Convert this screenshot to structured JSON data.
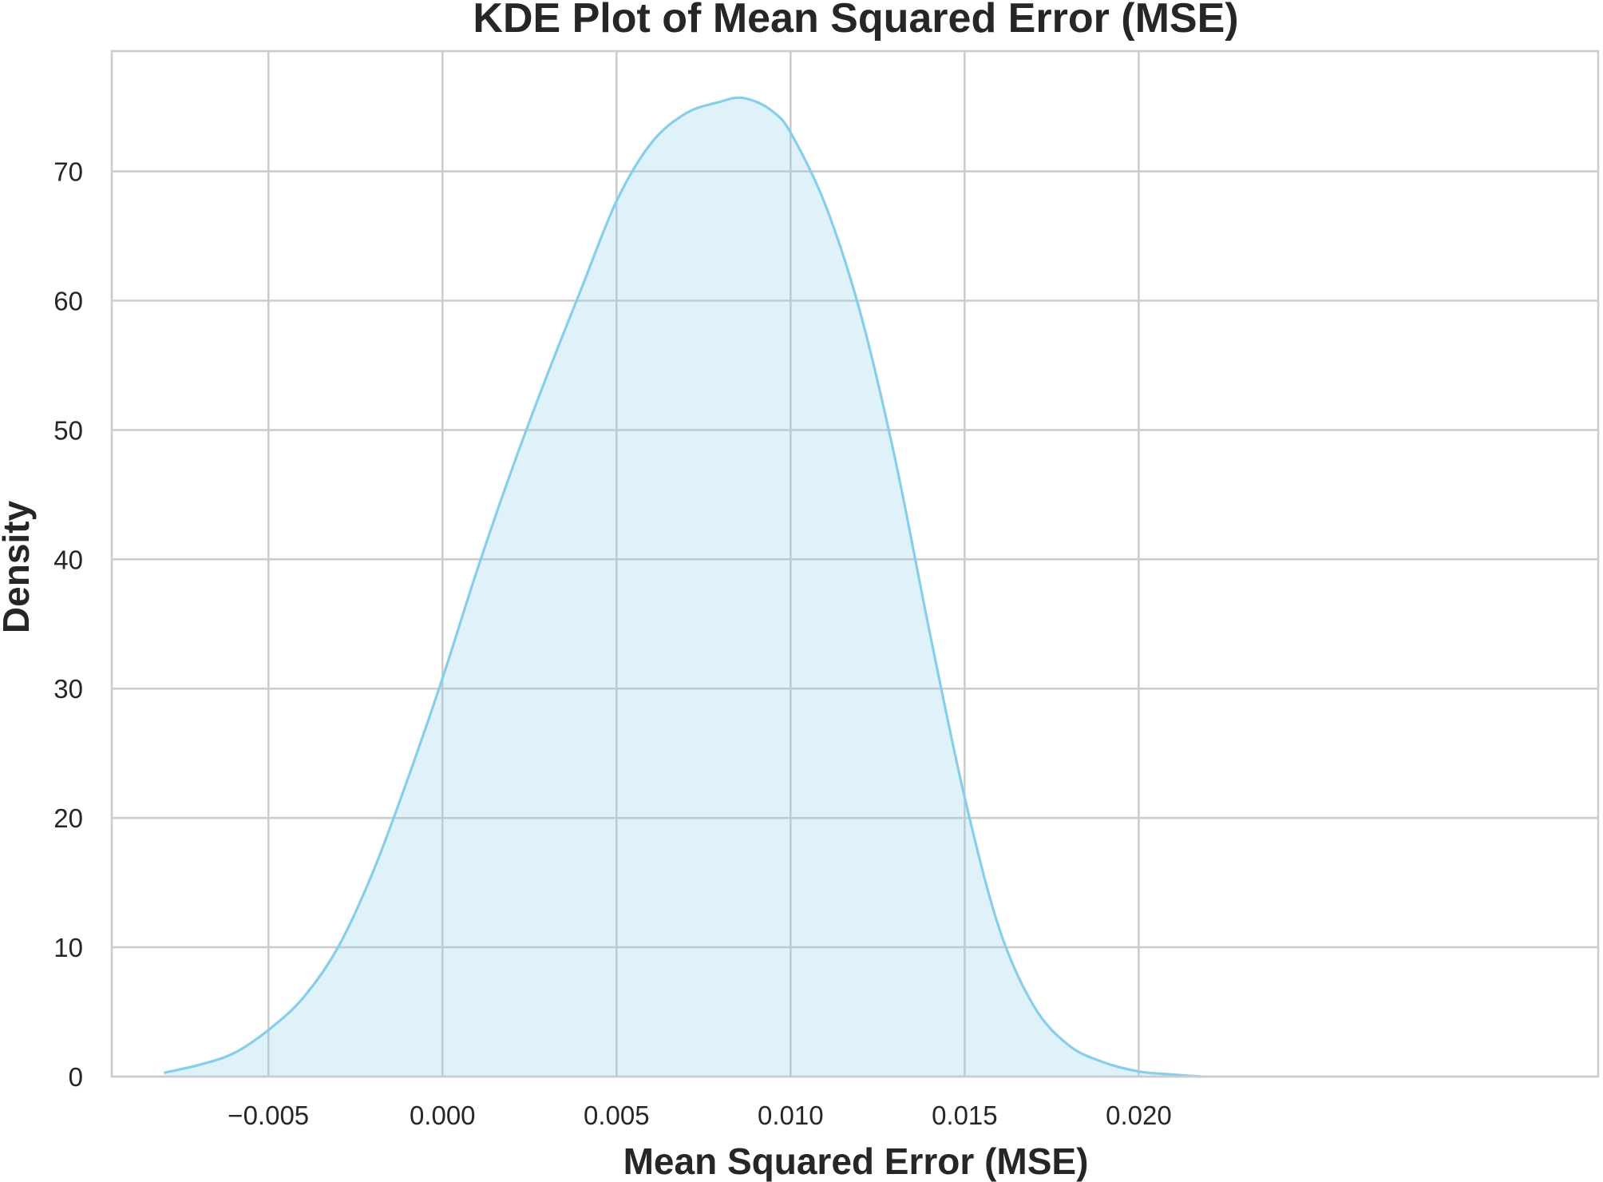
{
  "chart_data": {
    "type": "area",
    "title": "KDE Plot of Mean Squared Error (MSE)",
    "xlabel": "Mean Squared Error (MSE)",
    "ylabel": "Density",
    "xlim": [
      -0.0095,
      0.0332
    ],
    "ylim": [
      0,
      79.3
    ],
    "x_ticks": [
      -0.005,
      0.0,
      0.005,
      0.01,
      0.015,
      0.02
    ],
    "x_tick_labels": [
      "−0.005",
      "0.000",
      "0.005",
      "0.010",
      "0.015",
      "0.020"
    ],
    "y_ticks": [
      0,
      10,
      20,
      30,
      40,
      50,
      60,
      70
    ],
    "y_tick_labels": [
      "0",
      "10",
      "20",
      "30",
      "40",
      "50",
      "60",
      "70"
    ],
    "grid": true,
    "legend": false,
    "colors": {
      "line": "#87ceeb",
      "fill": "#87ceeb",
      "grid": "#cccccc",
      "text": "#262626"
    },
    "fill_opacity": 0.27,
    "series": [
      {
        "x": [
          -0.008,
          -0.007,
          -0.006,
          -0.005,
          -0.004,
          -0.003,
          -0.002,
          -0.001,
          0.0,
          0.001,
          0.002,
          0.003,
          0.004,
          0.005,
          0.006,
          0.007,
          0.008,
          0.0085,
          0.009,
          0.0095,
          0.01,
          0.011,
          0.012,
          0.013,
          0.014,
          0.015,
          0.016,
          0.017,
          0.018,
          0.019,
          0.02,
          0.021,
          0.0218
        ],
        "values": [
          0.3,
          0.9,
          1.8,
          3.6,
          6.1,
          10.0,
          15.8,
          23.0,
          30.8,
          39.2,
          47.0,
          54.2,
          61.0,
          67.7,
          72.2,
          74.5,
          75.4,
          75.7,
          75.4,
          74.6,
          73.0,
          67.4,
          59.1,
          47.8,
          34.3,
          21.6,
          11.4,
          5.4,
          2.4,
          1.1,
          0.4,
          0.15,
          0.0
        ]
      }
    ]
  }
}
